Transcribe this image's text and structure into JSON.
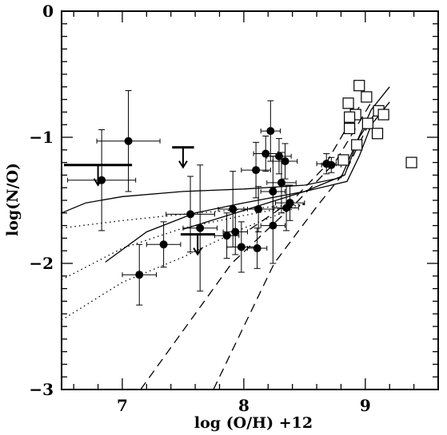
{
  "chart_data": {
    "type": "scatter",
    "title": "",
    "xlabel": "log (O/H) +12",
    "ylabel": "log(N/O)",
    "xlim": [
      6.5,
      9.6
    ],
    "ylim": [
      -3,
      0
    ],
    "x_ticks": [
      {
        "value": 7,
        "label": "7"
      },
      {
        "value": 8,
        "label": "8"
      },
      {
        "value": 9,
        "label": "9"
      }
    ],
    "y_ticks": [
      {
        "value": 0,
        "label": "0"
      },
      {
        "value": -1,
        "label": "−1"
      },
      {
        "value": -2,
        "label": "−2"
      },
      {
        "value": -3,
        "label": "−3"
      }
    ],
    "grid": false,
    "legend": "none",
    "series": [
      {
        "marker": "filled-circle",
        "points": [
          {
            "x": 7.05,
            "y": -1.03,
            "xerr": 0.26,
            "yerr": 0.4
          },
          {
            "x": 6.83,
            "y": -1.34,
            "xerr": 0.28,
            "yerr": 0.4
          },
          {
            "x": 7.14,
            "y": -2.09,
            "xerr": 0.14,
            "yerr": 0.24
          },
          {
            "x": 7.34,
            "y": -1.85,
            "xerr": 0.14,
            "yerr": 0.18
          },
          {
            "x": 7.56,
            "y": -1.61,
            "xerr": 0.2,
            "yerr": 0.3
          },
          {
            "x": 7.64,
            "y": -1.72,
            "xerr": 0.14,
            "yerr": 0.5
          },
          {
            "x": 7.86,
            "y": -1.78,
            "xerr": 0.1,
            "yerr": 0.18
          },
          {
            "x": 7.91,
            "y": -1.57,
            "xerr": 0.12,
            "yerr": 0.3
          },
          {
            "x": 7.93,
            "y": -1.75,
            "xerr": 0.1,
            "yerr": 0.18
          },
          {
            "x": 7.98,
            "y": -1.87,
            "xerr": 0.12,
            "yerr": 0.2
          },
          {
            "x": 8.1,
            "y": -1.26,
            "xerr": 0.12,
            "yerr": 0.22
          },
          {
            "x": 8.12,
            "y": -1.57,
            "xerr": 0.12,
            "yerr": 0.18
          },
          {
            "x": 8.11,
            "y": -1.88,
            "xerr": 0.08,
            "yerr": 0.16
          },
          {
            "x": 8.18,
            "y": -1.13,
            "xerr": 0.1,
            "yerr": 0.14
          },
          {
            "x": 8.22,
            "y": -0.95,
            "xerr": 0.08,
            "yerr": 0.24
          },
          {
            "x": 8.24,
            "y": -1.43,
            "xerr": 0.1,
            "yerr": 0.28
          },
          {
            "x": 8.24,
            "y": -1.7,
            "xerr": 0.1,
            "yerr": 0.3
          },
          {
            "x": 8.29,
            "y": -1.15,
            "xerr": 0.1,
            "yerr": 0.14
          },
          {
            "x": 8.31,
            "y": -1.36,
            "xerr": 0.12,
            "yerr": 0.24
          },
          {
            "x": 8.34,
            "y": -1.19,
            "xerr": 0.1,
            "yerr": 0.14
          },
          {
            "x": 8.35,
            "y": -1.56,
            "xerr": 0.1,
            "yerr": 0.18
          },
          {
            "x": 8.38,
            "y": -1.52,
            "xerr": 0.12,
            "yerr": 0.14
          },
          {
            "x": 8.68,
            "y": -1.21,
            "xerr": 0.08,
            "yerr": 0.08
          },
          {
            "x": 8.72,
            "y": -1.22,
            "xerr": 0.08,
            "yerr": 0.06
          }
        ]
      },
      {
        "marker": "open-square",
        "points": [
          {
            "x": 8.95,
            "y": -0.59
          },
          {
            "x": 8.86,
            "y": -0.73
          },
          {
            "x": 9.01,
            "y": -0.68
          },
          {
            "x": 8.92,
            "y": -0.82
          },
          {
            "x": 8.87,
            "y": -0.84
          },
          {
            "x": 9.11,
            "y": -0.79
          },
          {
            "x": 9.15,
            "y": -0.82
          },
          {
            "x": 9.02,
            "y": -0.89
          },
          {
            "x": 8.87,
            "y": -0.93
          },
          {
            "x": 9.1,
            "y": -0.97
          },
          {
            "x": 8.93,
            "y": -1.06
          },
          {
            "x": 8.82,
            "y": -1.18
          },
          {
            "x": 9.38,
            "y": -1.2
          }
        ]
      },
      {
        "marker": "upper-limit",
        "points": [
          {
            "x": 6.8,
            "y": -1.22,
            "xerr": 0.28
          },
          {
            "x": 7.5,
            "y": -1.08,
            "xerr": 0.09
          },
          {
            "x": 7.62,
            "y": -1.77,
            "xerr": 0.14
          }
        ]
      }
    ],
    "model_curves": [
      {
        "style": "solid",
        "points": [
          [
            6.5,
            -1.6
          ],
          [
            6.7,
            -1.52
          ],
          [
            7.0,
            -1.47
          ],
          [
            7.5,
            -1.43
          ],
          [
            8.0,
            -1.41
          ],
          [
            8.5,
            -1.38
          ],
          [
            8.8,
            -1.32
          ],
          [
            8.9,
            -1.1
          ],
          [
            9.05,
            -0.78
          ],
          [
            9.2,
            -0.6
          ]
        ]
      },
      {
        "style": "solid",
        "points": [
          [
            6.86,
            -1.99
          ],
          [
            7.2,
            -1.75
          ],
          [
            7.6,
            -1.6
          ],
          [
            8.0,
            -1.52
          ],
          [
            8.5,
            -1.43
          ],
          [
            8.85,
            -1.35
          ],
          [
            8.95,
            -1.15
          ],
          [
            9.05,
            -0.9
          ],
          [
            9.2,
            -0.72
          ]
        ]
      },
      {
        "style": "solid",
        "points": [
          [
            7.5,
            -1.73
          ],
          [
            8.0,
            -1.58
          ],
          [
            8.5,
            -1.43
          ],
          [
            8.83,
            -1.3
          ],
          [
            8.95,
            -1.0
          ],
          [
            9.12,
            -0.75
          ]
        ]
      },
      {
        "style": "dotted",
        "points": [
          [
            6.5,
            -1.72
          ],
          [
            7.0,
            -1.66
          ],
          [
            7.5,
            -1.61
          ],
          [
            8.0,
            -1.57
          ],
          [
            8.5,
            -1.53
          ]
        ]
      },
      {
        "style": "dotted",
        "points": [
          [
            6.5,
            -2.13
          ],
          [
            7.0,
            -1.88
          ],
          [
            7.5,
            -1.72
          ],
          [
            8.0,
            -1.62
          ],
          [
            8.5,
            -1.53
          ]
        ]
      },
      {
        "style": "dotted",
        "points": [
          [
            6.5,
            -2.45
          ],
          [
            7.0,
            -2.15
          ],
          [
            7.5,
            -1.95
          ],
          [
            8.0,
            -1.72
          ],
          [
            8.5,
            -1.53
          ]
        ]
      },
      {
        "style": "dashed",
        "points": [
          [
            8.05,
            -1.73
          ],
          [
            8.4,
            -1.5
          ],
          [
            8.65,
            -1.25
          ],
          [
            8.85,
            -0.92
          ],
          [
            9.0,
            -0.68
          ]
        ]
      },
      {
        "style": "dashed",
        "points": [
          [
            7.15,
            -3.0
          ],
          [
            7.9,
            -2.0
          ],
          [
            8.45,
            -1.5
          ],
          [
            8.75,
            -1.2
          ],
          [
            9.05,
            -0.72
          ]
        ]
      },
      {
        "style": "dashed",
        "points": [
          [
            7.75,
            -3.0
          ],
          [
            8.25,
            -2.0
          ],
          [
            8.6,
            -1.55
          ],
          [
            8.85,
            -1.25
          ],
          [
            9.05,
            -0.85
          ]
        ]
      }
    ]
  }
}
